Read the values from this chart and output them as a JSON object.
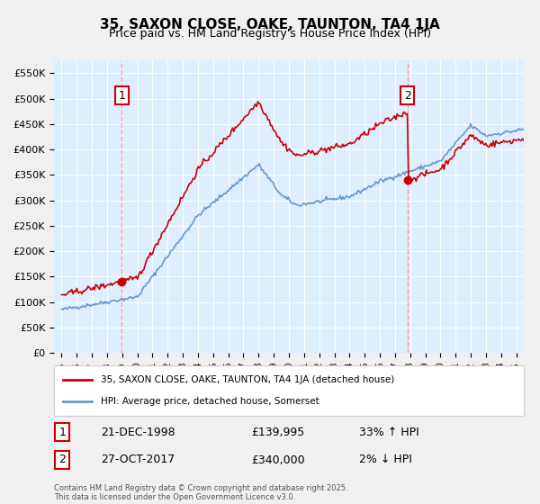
{
  "title": "35, SAXON CLOSE, OAKE, TAUNTON, TA4 1JA",
  "subtitle": "Price paid vs. HM Land Registry's House Price Index (HPI)",
  "legend_line1": "35, SAXON CLOSE, OAKE, TAUNTON, TA4 1JA (detached house)",
  "legend_line2": "HPI: Average price, detached house, Somerset",
  "footer": "Contains HM Land Registry data © Crown copyright and database right 2025.\nThis data is licensed under the Open Government Licence v3.0.",
  "sale1_label": "1",
  "sale1_date": "21-DEC-1998",
  "sale1_price": "£139,995",
  "sale1_hpi": "33% ↑ HPI",
  "sale2_label": "2",
  "sale2_date": "27-OCT-2017",
  "sale2_price": "£340,000",
  "sale2_hpi": "2% ↓ HPI",
  "sale1_x": 1998.97,
  "sale1_y": 139995,
  "sale2_x": 2017.82,
  "sale2_y": 340000,
  "vline1_x": 1998.97,
  "vline2_x": 2017.82,
  "red_color": "#cc0000",
  "blue_color": "#6699cc",
  "vline_color": "#ff9999",
  "background_color": "#ddeeff",
  "plot_bg": "#ffffff",
  "ylim": [
    0,
    575000
  ],
  "xlim_start": 1994.5,
  "xlim_end": 2025.5,
  "yticks": [
    0,
    50000,
    100000,
    150000,
    200000,
    250000,
    300000,
    350000,
    400000,
    450000,
    500000,
    550000
  ],
  "xticks": [
    1995,
    1996,
    1997,
    1998,
    1999,
    2000,
    2001,
    2002,
    2003,
    2004,
    2005,
    2006,
    2007,
    2008,
    2009,
    2010,
    2011,
    2012,
    2013,
    2014,
    2015,
    2016,
    2017,
    2018,
    2019,
    2020,
    2021,
    2022,
    2023,
    2024,
    2025
  ]
}
